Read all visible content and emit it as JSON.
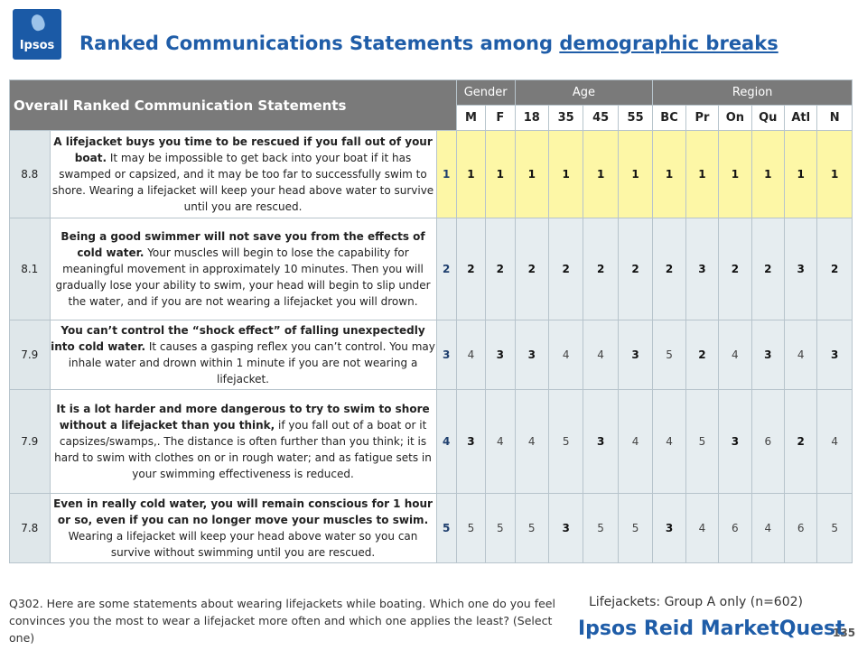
{
  "logo_text": "Ipsos",
  "title_prefix": "Ranked Communications Statements among ",
  "title_link": "demographic breaks",
  "table": {
    "header_label": "Overall Ranked Communication  Statements",
    "groups": [
      "Gender",
      "Age",
      "Region"
    ],
    "subheaders": [
      "M",
      "F",
      "18",
      "35",
      "45",
      "55",
      "BC",
      "Pr",
      "On",
      "Qu",
      "Atl",
      "N"
    ],
    "rows": [
      {
        "score": "8.8",
        "bold": "A lifejacket buys you time to be rescued if you fall out of your boat.",
        "text": " It may be impossible to get back into your boat if it has swamped or capsized, and it may be too far to successfully swim to shore.  Wearing a lifejacket will keep your head above water to survive until you are rescued.",
        "overall": "1",
        "values": [
          "1",
          "1",
          "1",
          "1",
          "1",
          "1",
          "1",
          "1",
          "1",
          "1",
          "1",
          "1"
        ],
        "bold_flags": [
          1,
          1,
          1,
          1,
          1,
          1,
          1,
          1,
          1,
          1,
          1,
          1
        ]
      },
      {
        "score": "8.1",
        "bold": "Being a good swimmer will not save you from the effects of cold water.",
        "text": " Your muscles will begin to lose the capability for meaningful movement in approximately 10 minutes.  Then you will gradually lose your ability to swim, your head will begin to slip under the water, and if you are not wearing a lifejacket you will drown.",
        "overall": "2",
        "values": [
          "2",
          "2",
          "2",
          "2",
          "2",
          "2",
          "2",
          "3",
          "2",
          "2",
          "3",
          "2"
        ],
        "bold_flags": [
          1,
          1,
          1,
          1,
          1,
          1,
          1,
          1,
          1,
          1,
          1,
          1
        ]
      },
      {
        "score": "7.9",
        "bold": "You can’t control the “shock effect” of falling unexpectedly into cold water.",
        "text": "  It causes a gasping reflex you can’t control.  You may inhale water and drown within 1 minute if you are not wearing a lifejacket.",
        "overall": "3",
        "values": [
          "4",
          "3",
          "3",
          "4",
          "4",
          "3",
          "5",
          "2",
          "4",
          "3",
          "4",
          "3"
        ],
        "bold_flags": [
          0,
          1,
          1,
          0,
          0,
          1,
          0,
          1,
          0,
          1,
          0,
          1
        ]
      },
      {
        "score": "7.9",
        "bold": "It is a lot harder and more dangerous to try to swim to shore without a lifejacket than you think,",
        "text": " if you fall out of a boat or it capsizes/swamps,.  The distance is often further than you think; it is hard to swim with clothes on or in rough water; and as fatigue sets in your swimming effectiveness is reduced.",
        "overall": "4",
        "values": [
          "3",
          "4",
          "4",
          "5",
          "3",
          "4",
          "4",
          "5",
          "3",
          "6",
          "2",
          "4"
        ],
        "bold_flags": [
          1,
          0,
          0,
          0,
          1,
          0,
          0,
          0,
          1,
          0,
          1,
          0
        ]
      },
      {
        "score": "7.8",
        "bold": "Even in really cold water, you will remain conscious for 1 hour or so, even if you can no longer move your muscles to swim.",
        "text": "  Wearing a lifejacket will keep your head above water so you can survive without swimming until you are rescued.",
        "overall": "5",
        "values": [
          "5",
          "5",
          "5",
          "3",
          "5",
          "5",
          "3",
          "4",
          "6",
          "4",
          "6",
          "5"
        ],
        "bold_flags": [
          0,
          0,
          0,
          1,
          0,
          0,
          1,
          0,
          0,
          0,
          0,
          0
        ]
      }
    ]
  },
  "footnote": "Q302.  Here are some statements about wearing lifejackets while boating.  Which one do you feel convinces you the most to wear a lifejacket more often and which one applies the least? (Select one)",
  "sample": "Lifejackets: Group A only (n=602)",
  "brand": "Ipsos Reid MarketQuest",
  "page_number": "135",
  "colors": {
    "title": "#1f5da8",
    "header_bg": "#7a7a7a",
    "highlight_row": "#fdf7a6",
    "row_bg": "#e6edf0"
  }
}
